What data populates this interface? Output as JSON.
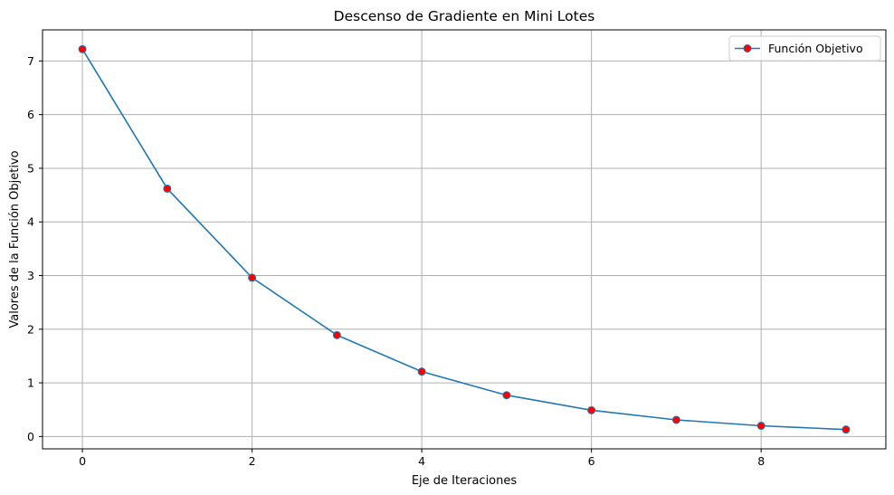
{
  "chart_data": {
    "type": "line",
    "title": "Descenso de Gradiente en Mini Lotes",
    "xlabel": "Eje de Iteraciones",
    "ylabel": "Valores de la Función Objetivo",
    "x": [
      0,
      1,
      2,
      3,
      4,
      5,
      6,
      7,
      8,
      9
    ],
    "series": [
      {
        "name": "Función Objetivo",
        "values": [
          7.22,
          4.62,
          2.96,
          1.89,
          1.21,
          0.77,
          0.49,
          0.31,
          0.2,
          0.13
        ],
        "line_color": "#1f77b4",
        "marker_color": "#ff0000",
        "marker_edge_color": "#1f77b4"
      }
    ],
    "xlim": [
      -0.47,
      9.47
    ],
    "ylim": [
      -0.23,
      7.58
    ],
    "xticks": [
      "0",
      "2",
      "4",
      "6",
      "8"
    ],
    "yticks": [
      "0",
      "1",
      "2",
      "3",
      "4",
      "5",
      "6",
      "7"
    ],
    "grid": true,
    "legend_position": "top-right",
    "grid_color": "#b0b0b0"
  }
}
